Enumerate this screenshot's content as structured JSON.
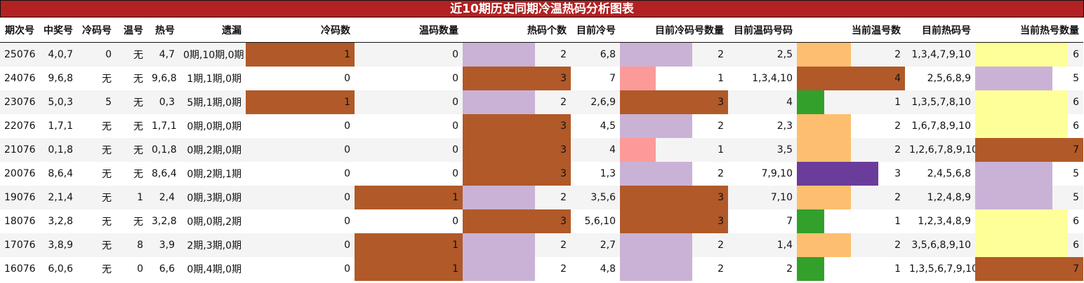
{
  "title": "近10期历史同期冷温热码分析图表",
  "columns": [
    "期次号",
    "中奖号",
    "冷码号",
    "温号",
    "热号",
    "遗漏",
    "冷码数",
    "温码数量",
    "热码个数",
    "目前冷号",
    "目前冷码号数量",
    "目前温码号码",
    "当前温号数",
    "目前热码号",
    "当前热号数量"
  ],
  "bar_colors": {
    "冷码数": {
      "1": "#b15928"
    },
    "温码数量": {
      "1": "#b15928"
    },
    "热码个数": {
      "3": "#b15928",
      "2": "#cab2d6"
    },
    "目前冷码号数量": {
      "3": "#b15928",
      "2": "#cab2d6",
      "1": "#fb9a99"
    },
    "当前温号数": {
      "4": "#b15928",
      "3": "#6a3d9a",
      "2": "#fdbf6f",
      "1": "#33a02c"
    },
    "当前热号数量": {
      "7": "#b15928",
      "6": "#ffff99",
      "5": "#cab2d6"
    }
  },
  "rows": [
    [
      "25076",
      "4,0,7",
      "0",
      "无",
      "4,7",
      "0期,10期,0期",
      1,
      0,
      2,
      "6,8",
      2,
      "2,5",
      2,
      "1,3,4,7,9,10",
      6
    ],
    [
      "24076",
      "9,6,8",
      "无",
      "无",
      "9,6,8",
      "1期,1期,0期",
      0,
      0,
      3,
      "7",
      1,
      "1,3,4,10",
      4,
      "2,5,6,8,9",
      5
    ],
    [
      "23076",
      "5,0,3",
      "5",
      "无",
      "0,3",
      "5期,1期,0期",
      1,
      0,
      2,
      "2,6,9",
      3,
      "4",
      1,
      "1,3,5,7,8,10",
      6
    ],
    [
      "22076",
      "1,7,1",
      "无",
      "无",
      "1,7,1",
      "0期,0期,0期",
      0,
      0,
      3,
      "4,5",
      2,
      "2,3",
      2,
      "1,6,7,8,9,10",
      6
    ],
    [
      "21076",
      "0,1,8",
      "无",
      "无",
      "0,1,8",
      "0期,2期,0期",
      0,
      0,
      3,
      "4",
      1,
      "3,5",
      2,
      "1,2,6,7,8,9,10",
      7
    ],
    [
      "20076",
      "8,6,4",
      "无",
      "无",
      "8,6,4",
      "0期,2期,1期",
      0,
      0,
      3,
      "1,3",
      2,
      "7,9,10",
      3,
      "2,4,5,6,8",
      5
    ],
    [
      "19076",
      "2,1,4",
      "无",
      "1",
      "2,4",
      "0期,3期,0期",
      0,
      1,
      2,
      "3,5,6",
      3,
      "7,10",
      2,
      "1,2,4,8,9",
      5
    ],
    [
      "18076",
      "3,2,8",
      "无",
      "无",
      "3,2,8",
      "0期,0期,2期",
      0,
      0,
      3,
      "5,6,10",
      3,
      "7",
      1,
      "1,2,3,4,8,9",
      6
    ],
    [
      "17076",
      "3,8,9",
      "无",
      "8",
      "3,9",
      "2期,3期,0期",
      0,
      1,
      2,
      "2,7",
      2,
      "1,4",
      2,
      "3,5,6,8,9,10",
      6
    ],
    [
      "16076",
      "6,0,6",
      "无",
      "0",
      "6,6",
      "0期,4期,0期",
      0,
      1,
      2,
      "4,8",
      2,
      "2",
      1,
      "1,3,5,6,7,9,10",
      7
    ]
  ]
}
